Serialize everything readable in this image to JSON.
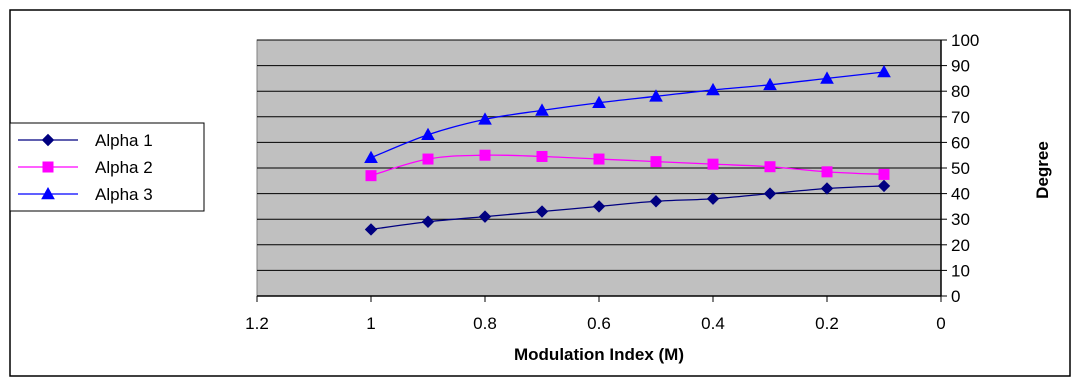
{
  "chart_data": {
    "type": "line",
    "x": [
      1,
      0.9,
      0.8,
      0.7,
      0.6,
      0.5,
      0.4,
      0.3,
      0.2,
      0.1
    ],
    "xlabel": "Modulation Index (M)",
    "ylabel": "Degree",
    "xlim": [
      1.2,
      0
    ],
    "ylim": [
      0,
      100
    ],
    "x_reversed": true,
    "y_axis_side": "right",
    "x_ticks": [
      "1.2",
      "1",
      "0.8",
      "0.6",
      "0.4",
      "0.2",
      "0"
    ],
    "y_ticks": [
      "0",
      "10",
      "20",
      "30",
      "40",
      "50",
      "60",
      "70",
      "80",
      "90",
      "100"
    ],
    "grid": true,
    "plot_background": "#c0c0c0",
    "legend_position": "left",
    "series": [
      {
        "name": "Alpha 1",
        "color": "#000080",
        "marker": "diamond",
        "values": [
          26,
          29,
          31,
          33,
          35,
          37,
          38,
          40,
          42,
          43
        ]
      },
      {
        "name": "Alpha 2",
        "color": "#ff00ff",
        "marker": "square",
        "values": [
          47,
          53.5,
          55,
          54.5,
          53.5,
          52.5,
          51.5,
          50.5,
          48.5,
          47.5
        ]
      },
      {
        "name": "Alpha 3",
        "color": "#0000ff",
        "marker": "triangle",
        "values": [
          54,
          63,
          69,
          72.5,
          75.5,
          78,
          80.5,
          82.5,
          85,
          87.5
        ]
      }
    ]
  }
}
